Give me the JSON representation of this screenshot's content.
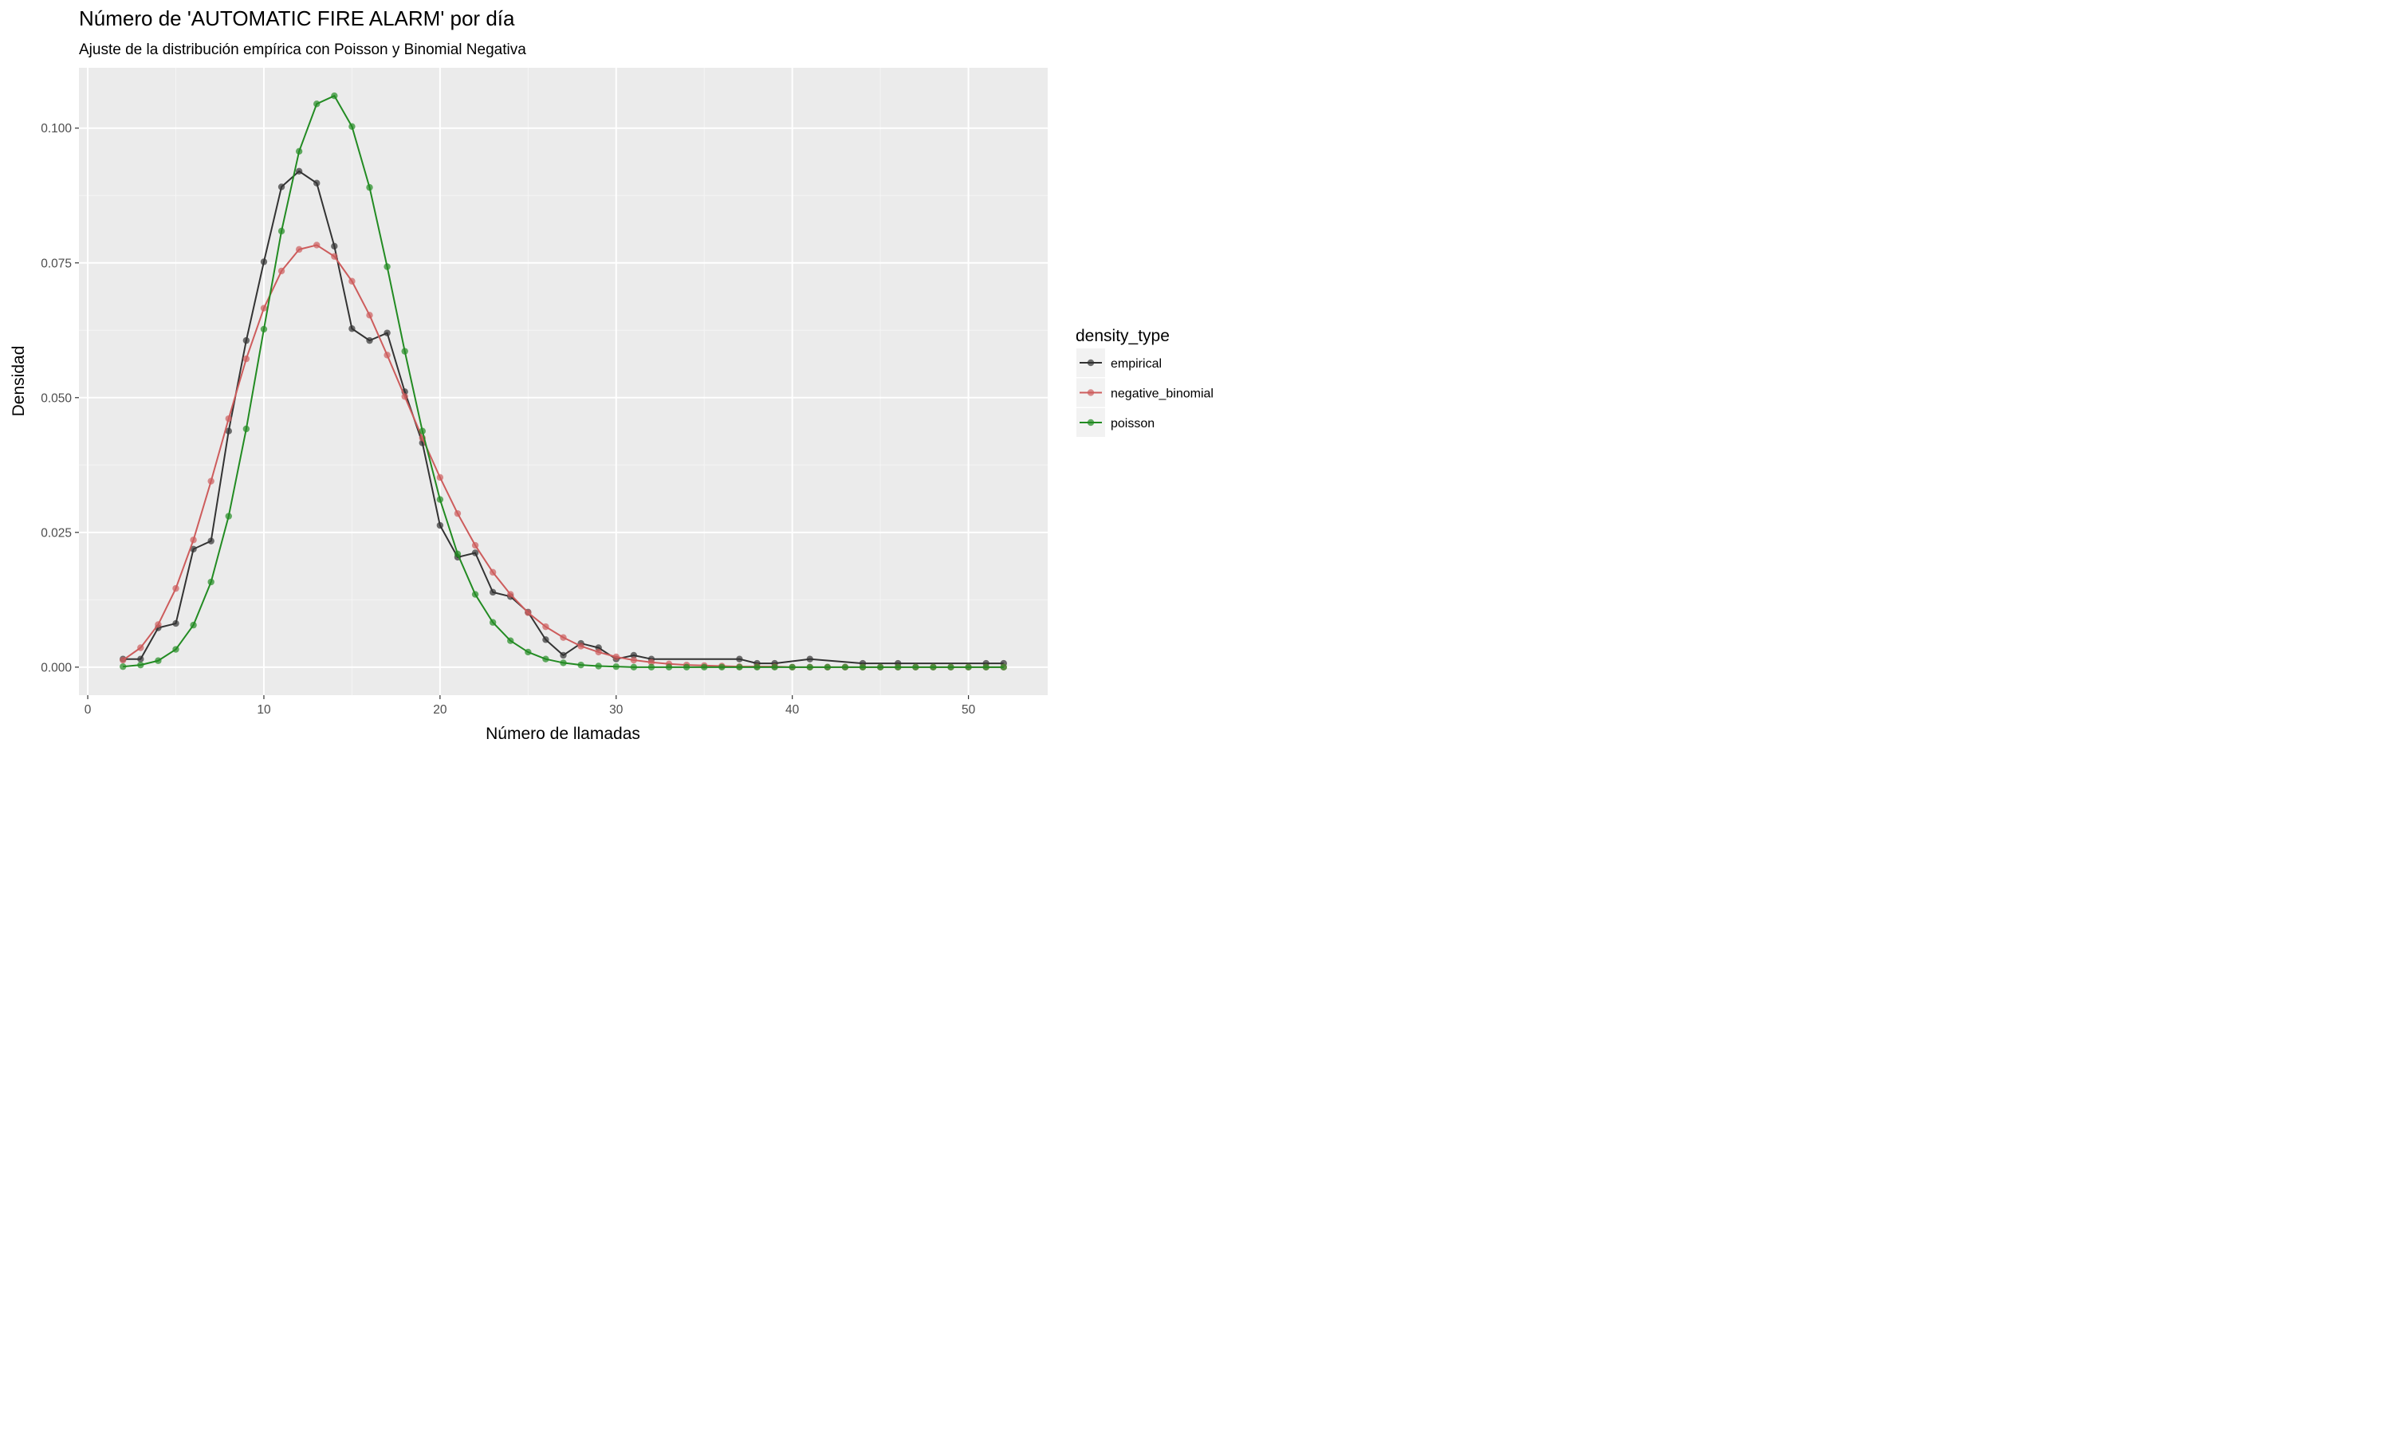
{
  "chart_data": {
    "type": "line",
    "title": "Número de 'AUTOMATIC FIRE ALARM' por día",
    "subtitle": "Ajuste de la distribución empírica con Poisson y Binomial Negativa",
    "xlabel": "Número de llamadas",
    "ylabel": "Densidad",
    "xlim": [
      -0.5,
      54.5
    ],
    "ylim": [
      -0.0052,
      0.1112
    ],
    "x_ticks": [
      0,
      10,
      20,
      30,
      40,
      50
    ],
    "x_tick_labels": [
      "0",
      "10",
      "20",
      "30",
      "40",
      "50"
    ],
    "y_ticks": [
      0,
      0.025,
      0.05,
      0.075,
      0.1
    ],
    "y_tick_labels": [
      "0.000",
      "0.025",
      "0.050",
      "0.075",
      "0.100"
    ],
    "grid": true,
    "legend": {
      "title": "density_type",
      "position": "right"
    },
    "series": [
      {
        "name": "empirical",
        "color": "#333333",
        "points": [
          [
            2,
            0.0015
          ],
          [
            3,
            0.0015
          ],
          [
            4,
            0.0073
          ],
          [
            5,
            0.0081
          ],
          [
            6,
            0.0219
          ],
          [
            7,
            0.0234
          ],
          [
            8,
            0.0438
          ],
          [
            9,
            0.0606
          ],
          [
            10,
            0.0752
          ],
          [
            11,
            0.0891
          ],
          [
            12,
            0.092
          ],
          [
            13,
            0.0898
          ],
          [
            14,
            0.0781
          ],
          [
            15,
            0.0628
          ],
          [
            16,
            0.0606
          ],
          [
            17,
            0.062
          ],
          [
            18,
            0.0511
          ],
          [
            19,
            0.0416
          ],
          [
            20,
            0.0263
          ],
          [
            21,
            0.0204
          ],
          [
            22,
            0.0212
          ],
          [
            23,
            0.0139
          ],
          [
            24,
            0.0131
          ],
          [
            25,
            0.0102
          ],
          [
            26,
            0.0051
          ],
          [
            27,
            0.0022
          ],
          [
            28,
            0.0044
          ],
          [
            29,
            0.0036
          ],
          [
            30,
            0.0015
          ],
          [
            31,
            0.0022
          ],
          [
            32,
            0.0015
          ],
          [
            37,
            0.0015
          ],
          [
            38,
            0.0007
          ],
          [
            39,
            0.0007
          ],
          [
            41,
            0.0015
          ],
          [
            44,
            0.0007
          ],
          [
            46,
            0.0007
          ],
          [
            51,
            0.0007
          ],
          [
            52,
            0.0007
          ]
        ]
      },
      {
        "name": "negative_binomial",
        "color": "#cd5c5c",
        "points": [
          [
            2,
            0.0013
          ],
          [
            3,
            0.0036
          ],
          [
            4,
            0.0079
          ],
          [
            5,
            0.0146
          ],
          [
            6,
            0.0236
          ],
          [
            7,
            0.0345
          ],
          [
            8,
            0.0461
          ],
          [
            9,
            0.0572
          ],
          [
            10,
            0.0666
          ],
          [
            11,
            0.0735
          ],
          [
            12,
            0.0775
          ],
          [
            13,
            0.0783
          ],
          [
            14,
            0.0762
          ],
          [
            15,
            0.0716
          ],
          [
            16,
            0.0653
          ],
          [
            17,
            0.0579
          ],
          [
            18,
            0.0502
          ],
          [
            19,
            0.0425
          ],
          [
            20,
            0.0352
          ],
          [
            21,
            0.0285
          ],
          [
            22,
            0.0226
          ],
          [
            23,
            0.0176
          ],
          [
            24,
            0.0135
          ],
          [
            25,
            0.0101
          ],
          [
            26,
            0.0075
          ],
          [
            27,
            0.0055
          ],
          [
            28,
            0.0039
          ],
          [
            29,
            0.0028
          ],
          [
            30,
            0.0019
          ],
          [
            31,
            0.0013
          ],
          [
            32,
            0.0009
          ],
          [
            33,
            0.0006
          ],
          [
            34,
            0.0004
          ],
          [
            35,
            0.0003
          ],
          [
            36,
            0.0002
          ],
          [
            37,
            0.0001
          ],
          [
            38,
            0.0001
          ],
          [
            39,
            0.0001
          ],
          [
            40,
            0.0
          ],
          [
            41,
            0.0
          ],
          [
            42,
            0.0
          ],
          [
            43,
            0.0
          ],
          [
            44,
            0.0
          ],
          [
            45,
            0.0
          ],
          [
            46,
            0.0
          ],
          [
            47,
            0.0
          ],
          [
            48,
            0.0
          ],
          [
            49,
            0.0
          ],
          [
            50,
            0.0
          ],
          [
            51,
            0.0
          ],
          [
            52,
            0.0
          ]
        ]
      },
      {
        "name": "poisson",
        "color": "#228b22",
        "points": [
          [
            2,
            0.0001
          ],
          [
            3,
            0.0004
          ],
          [
            4,
            0.0012
          ],
          [
            5,
            0.0033
          ],
          [
            6,
            0.0078
          ],
          [
            7,
            0.0158
          ],
          [
            8,
            0.028
          ],
          [
            9,
            0.0442
          ],
          [
            10,
            0.0627
          ],
          [
            11,
            0.0809
          ],
          [
            12,
            0.0957
          ],
          [
            13,
            0.1045
          ],
          [
            14,
            0.106
          ],
          [
            15,
            0.1003
          ],
          [
            16,
            0.089
          ],
          [
            17,
            0.0743
          ],
          [
            18,
            0.0586
          ],
          [
            19,
            0.0438
          ],
          [
            20,
            0.0311
          ],
          [
            21,
            0.021
          ],
          [
            22,
            0.0135
          ],
          [
            23,
            0.0083
          ],
          [
            24,
            0.0049
          ],
          [
            25,
            0.0028
          ],
          [
            26,
            0.0015
          ],
          [
            27,
            0.0008
          ],
          [
            28,
            0.0004
          ],
          [
            29,
            0.0002
          ],
          [
            30,
            0.0001
          ],
          [
            31,
            0.0
          ],
          [
            32,
            0.0
          ],
          [
            33,
            0.0
          ],
          [
            34,
            0.0
          ],
          [
            35,
            0.0
          ],
          [
            36,
            0.0
          ],
          [
            37,
            0.0
          ],
          [
            38,
            0.0
          ],
          [
            39,
            0.0
          ],
          [
            40,
            0.0
          ],
          [
            41,
            0.0
          ],
          [
            42,
            0.0
          ],
          [
            43,
            0.0
          ],
          [
            44,
            0.0
          ],
          [
            45,
            0.0
          ],
          [
            46,
            0.0
          ],
          [
            47,
            0.0
          ],
          [
            48,
            0.0
          ],
          [
            49,
            0.0
          ],
          [
            50,
            0.0
          ],
          [
            51,
            0.0
          ],
          [
            52,
            0.0
          ]
        ]
      }
    ]
  }
}
